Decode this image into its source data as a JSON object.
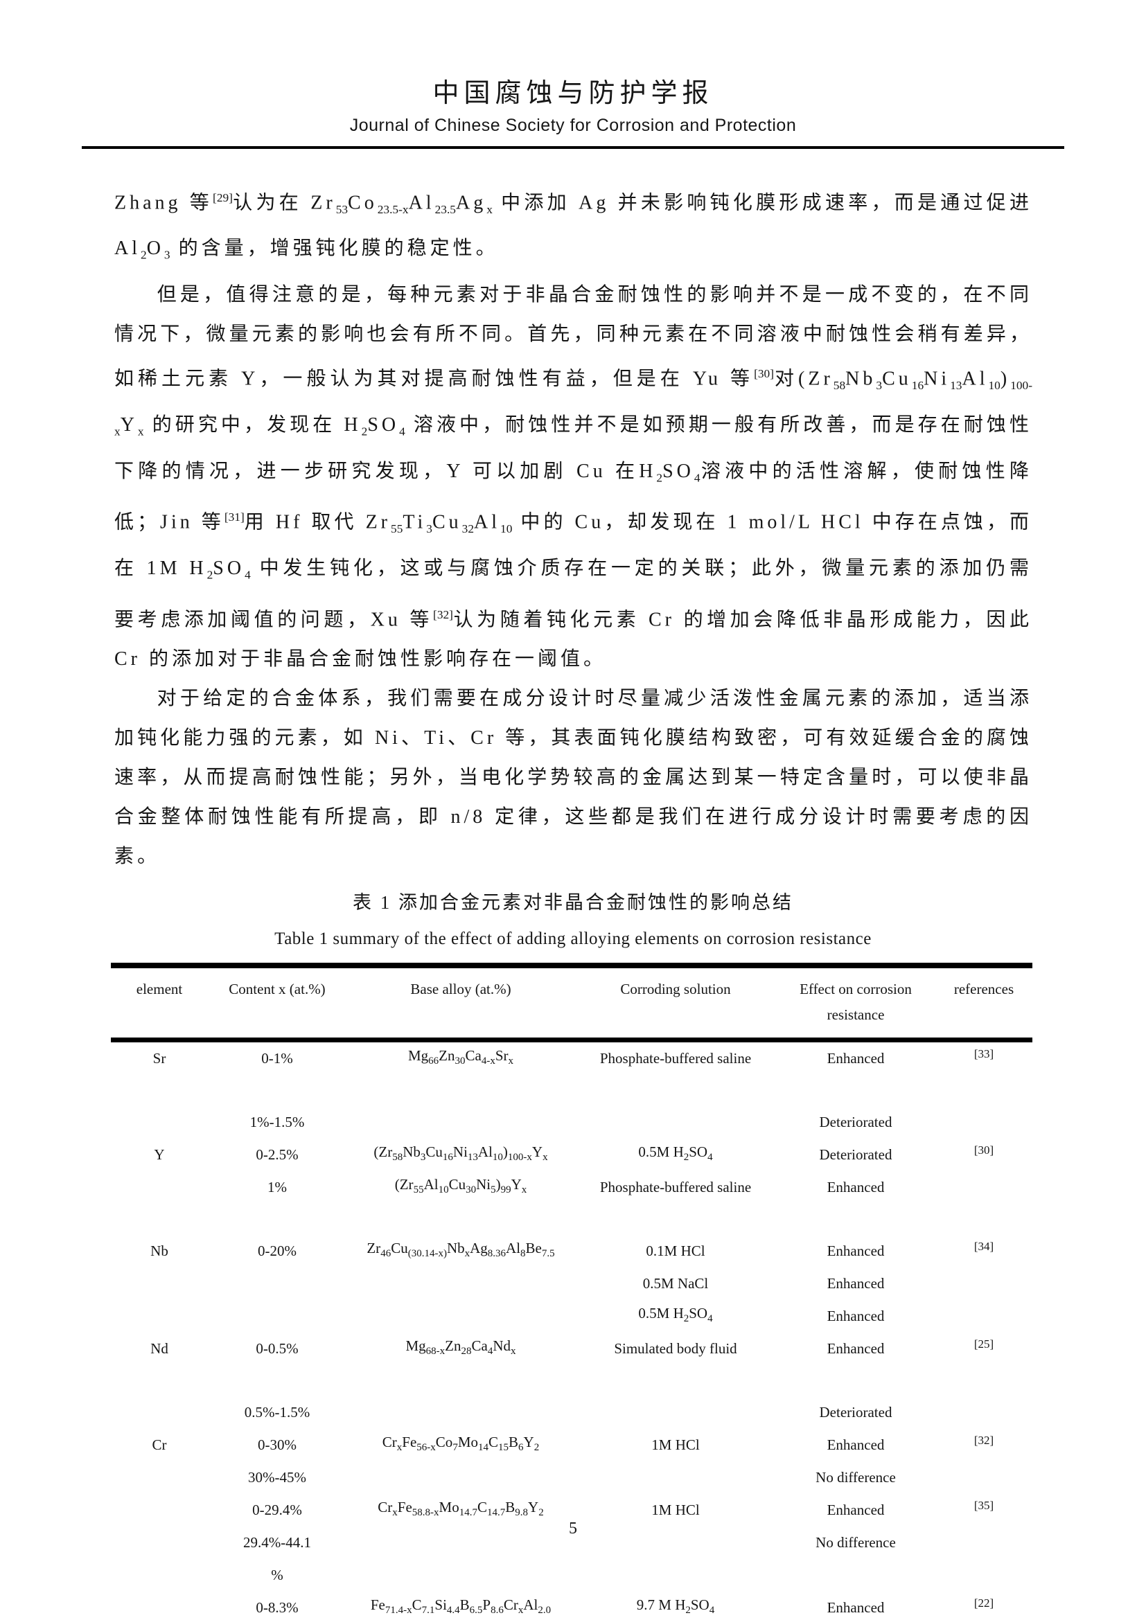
{
  "header": {
    "title_zh": "中国腐蚀与防护学报",
    "title_en": "Journal of Chinese Society for Corrosion and Protection"
  },
  "paragraphs": [
    {
      "indent": false,
      "text": "Zhang 等^{[29]}认为在 Zr_{53}Co_{23.5-x}Al_{23.5}Ag_{x} 中添加 Ag 并未影响钝化膜形成速率，而是通过促进Al_{2}O_{3} 的含量，增强钝化膜的稳定性。"
    },
    {
      "indent": true,
      "text": "但是，值得注意的是，每种元素对于非晶合金耐蚀性的影响并不是一成不变的，在不同情况下，微量元素的影响也会有所不同。首先，同种元素在不同溶液中耐蚀性会稍有差异，如稀土元素 Y，一般认为其对提高耐蚀性有益，但是在 Yu 等^{[30]}对(Zr_{58}Nb_{3}Cu_{16}Ni_{13}Al_{10})_{100-x}Y_{x} 的研究中，发现在 H_{2}SO_{4} 溶液中，耐蚀性并不是如预期一般有所改善，而是存在耐蚀性下降的情况，进一步研究发现，Y 可以加剧 Cu 在H_{2}SO_{4}溶液中的活性溶解，使耐蚀性降低；Jin 等^{[31]}用 Hf 取代 Zr_{55}Ti_{3}Cu_{32}Al_{10} 中的 Cu，却发现在 1 mol/L HCl 中存在点蚀，而在 1M H_{2}SO_{4} 中发生钝化，这或与腐蚀介质存在一定的关联；此外，微量元素的添加仍需要考虑添加阈值的问题，Xu 等^{[32]}认为随着钝化元素 Cr 的增加会降低非晶形成能力，因此 Cr 的添加对于非晶合金耐蚀性影响存在一阈值。"
    },
    {
      "indent": true,
      "text": "对于给定的合金体系，我们需要在成分设计时尽量减少活泼性金属元素的添加，适当添加钝化能力强的元素，如 Ni、Ti、Cr 等，其表面钝化膜结构致密，可有效延缓合金的腐蚀速率，从而提高耐蚀性能；另外，当电化学势较高的金属达到某一特定含量时，可以使非晶合金整体耐蚀性能有所提高，即 n/8 定律，这些都是我们在进行成分设计时需要考虑的因素。"
    }
  ],
  "table": {
    "caption_zh": "表 1 添加合金元素对非晶合金耐蚀性的影响总结",
    "caption_en": "Table 1 summary of the effect of adding alloying elements on corrosion resistance",
    "columns": [
      "element",
      "Content x (at.%)",
      "Base alloy (at.%)",
      "Corroding solution",
      "Effect on corrosion resistance",
      "references"
    ],
    "rows": [
      {
        "element": "Sr",
        "content": "0-1%",
        "alloy": "Mg_{66}Zn_{30}Ca_{4-x}Sr_{x}",
        "solution": "Phosphate-buffered saline",
        "effect": "Enhanced",
        "ref": "[33]",
        "gap_before": false
      },
      {
        "element": "",
        "content": "1%-1.5%",
        "alloy": "",
        "solution": "",
        "effect": "Deteriorated",
        "ref": "",
        "gap_before": true
      },
      {
        "element": "Y",
        "content": "0-2.5%",
        "alloy": "(Zr_{58}Nb_{3}Cu_{16}Ni_{13}Al_{10})_{100-x}Y_{x}",
        "solution": "0.5M H_{2}SO_{4}",
        "effect": "Deteriorated",
        "ref": "[30]",
        "gap_before": false
      },
      {
        "element": "",
        "content": "1%",
        "alloy": "(Zr_{55}Al_{10}Cu_{30}Ni_{5})_{99}Y_{x}",
        "solution": "Phosphate-buffered saline",
        "effect": "Enhanced",
        "ref": "",
        "gap_before": false
      },
      {
        "element": "Nb",
        "content": "0-20%",
        "alloy": "Zr_{46}Cu_{(30.14-x)}Nb_{x}Ag_{8.36}Al_{8}Be_{7.5}",
        "solution": "0.1M HCl",
        "effect": "Enhanced",
        "ref": "[34]",
        "gap_before": true
      },
      {
        "element": "",
        "content": "",
        "alloy": "",
        "solution": "0.5M NaCl",
        "effect": "Enhanced",
        "ref": "",
        "gap_before": false
      },
      {
        "element": "",
        "content": "",
        "alloy": "",
        "solution": "0.5M H_{2}SO_{4}",
        "effect": "Enhanced",
        "ref": "",
        "gap_before": false
      },
      {
        "element": "Nd",
        "content": "0-0.5%",
        "alloy": "Mg_{68-x}Zn_{28}Ca_{4}Nd_{x}",
        "solution": "Simulated body fluid",
        "effect": "Enhanced",
        "ref": "[25]",
        "gap_before": false
      },
      {
        "element": "",
        "content": "0.5%-1.5%",
        "alloy": "",
        "solution": "",
        "effect": "Deteriorated",
        "ref": "",
        "gap_before": true
      },
      {
        "element": "Cr",
        "content": "0-30%",
        "alloy": "Cr_{x}Fe_{56-x}Co_{7}Mo_{14}C_{15}B_{6}Y_{2}",
        "solution": "1M HCl",
        "effect": "Enhanced",
        "ref": "[32]",
        "gap_before": false
      },
      {
        "element": "",
        "content": "30%-45%",
        "alloy": "",
        "solution": "",
        "effect": "No difference",
        "ref": "",
        "gap_before": false
      },
      {
        "element": "",
        "content": "0-29.4%",
        "alloy": "Cr_{x}Fe_{58.8-x}Mo_{14.7}C_{14.7}B_{9.8}Y_{2}",
        "solution": "1M HCl",
        "effect": "Enhanced",
        "ref": "[35]",
        "gap_before": false
      },
      {
        "element": "",
        "content": "29.4%-44.1",
        "alloy": "",
        "solution": "",
        "effect": "No difference",
        "ref": "",
        "gap_before": false
      },
      {
        "element": "",
        "content": "%",
        "alloy": "",
        "solution": "",
        "effect": "",
        "ref": "",
        "gap_before": false
      },
      {
        "element": "",
        "content": "0-8.3%",
        "alloy": "Fe_{71.4-x}C_{7.1}Si_{4.4}B_{6.5}P_{8.6}Cr_{x}Al_{2.0}",
        "solution": "9.7 M H_{2}SO_{4}",
        "effect": "Enhanced",
        "ref": "[22]",
        "gap_before": false
      }
    ]
  },
  "page_number": "5"
}
